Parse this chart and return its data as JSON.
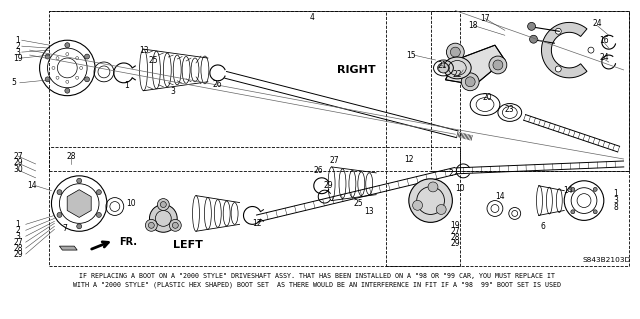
{
  "bg": "#ffffff",
  "fg": "#000000",
  "fig_width": 6.4,
  "fig_height": 3.19,
  "dpi": 100,
  "note1": "IF REPLACING A BOOT ON A \"2000 STYLE\" DRIVESHAFT ASSY. THAT HAS BEEN INSTALLED ON A \"98 OR \"99 CAR, YOU MUST REPLACE IT",
  "note2": "WITH A \"2000 STYLE\" (PLASTIC HEX SHAPED) BOOT SET  AS THERE WOULD BE AN INTERFERENCE IN FIT IF A \"98  99\" BOOT SET IS USED",
  "part_num": "S843B2103D",
  "callout_fs": 5.5,
  "label_fs": 7.0,
  "note_fs": 4.8
}
